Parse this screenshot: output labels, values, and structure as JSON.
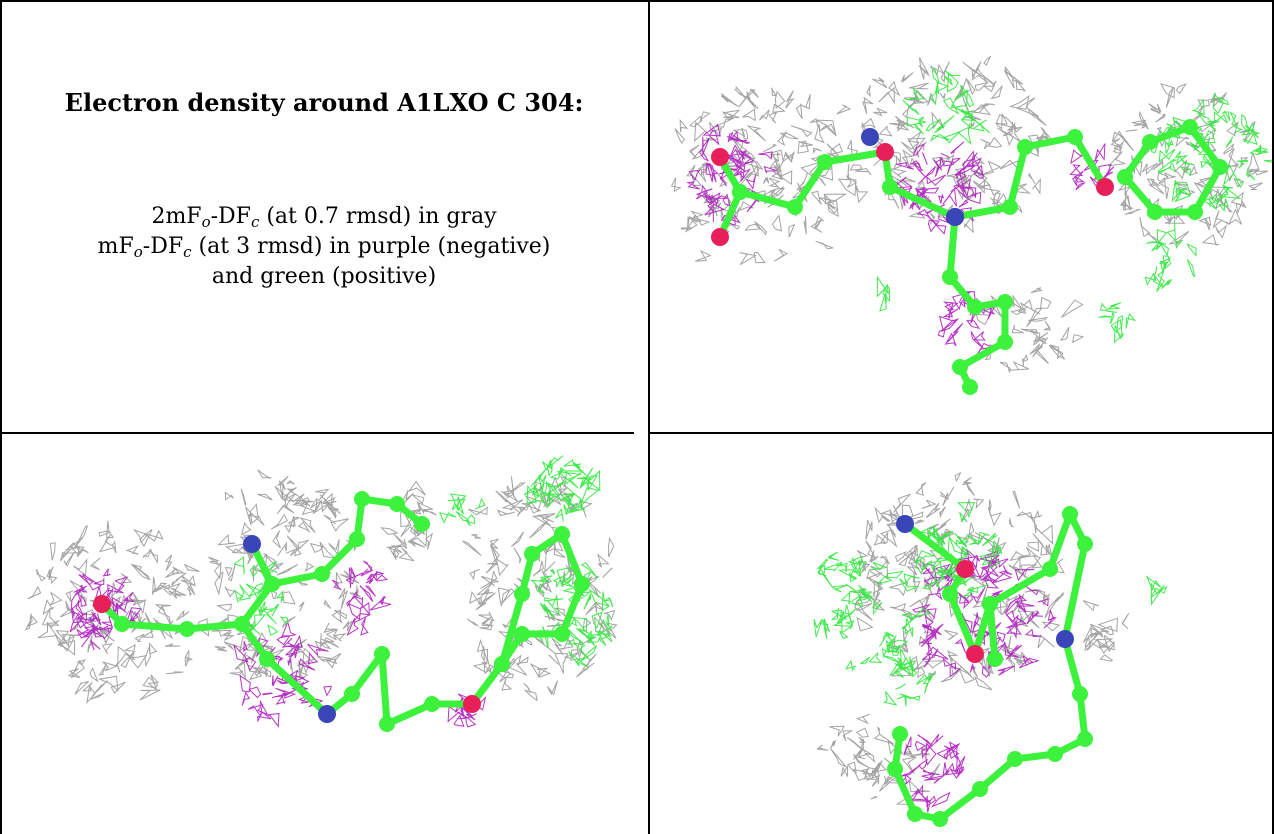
{
  "caption": {
    "title": "Electron density around A1LXO C 304:",
    "line1": {
      "pre": "2mF",
      "sub1": "o",
      "mid": "-DF",
      "sub2": "c",
      "post": " (at 0.7 rmsd) in gray"
    },
    "line2": {
      "pre": "mF",
      "sub1": "o",
      "mid": "-DF",
      "sub2": "c",
      "post": " (at 3 rmsd) in purple (negative)"
    },
    "line3": "and green (positive)"
  },
  "colors": {
    "carbon": "#3cf23c",
    "nitrogen": "#3a45b8",
    "oxygen": "#e8205a",
    "density_2fofc": "#9a9a9a",
    "density_negative": "#b01ec0",
    "density_positive": "#2ee83a",
    "border": "#000000"
  }
}
